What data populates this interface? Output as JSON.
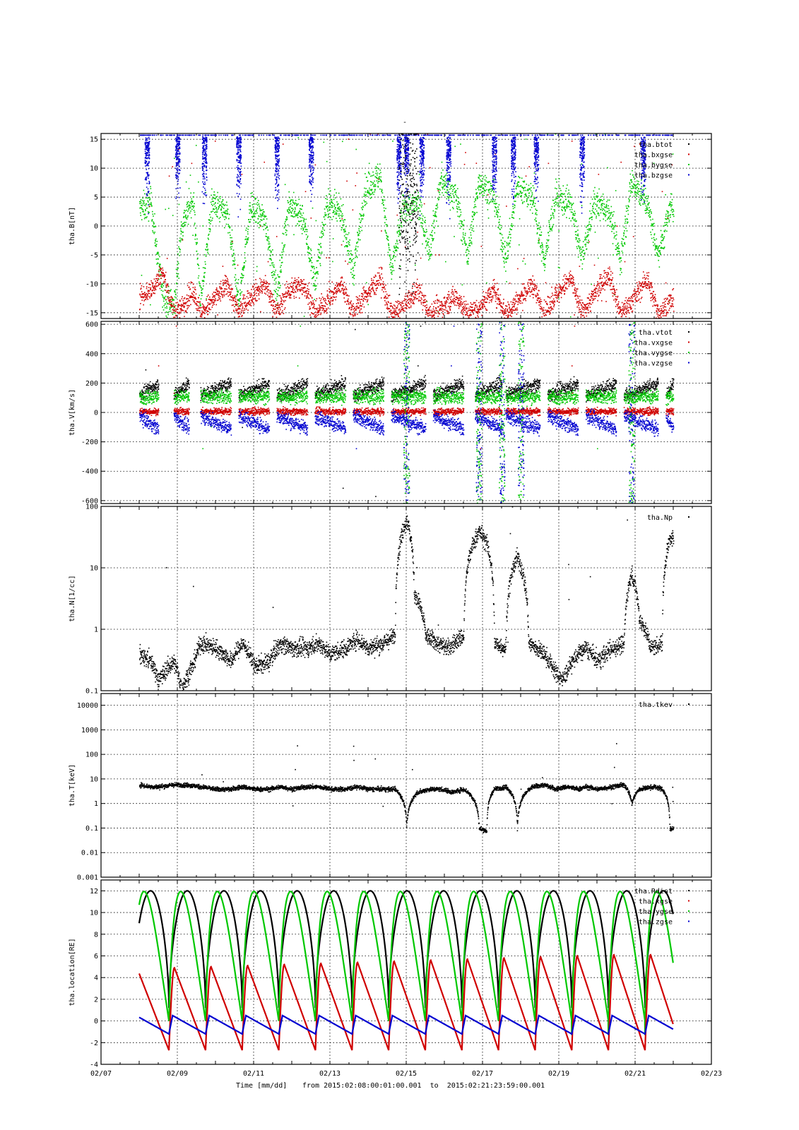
{
  "figure": {
    "top_mark": "-",
    "time_label": "Time [mm/dd]",
    "from_text": "from 2015:02:08:00:01:00.001  to  2015:02:21:23:59:00.001",
    "x_ticks": [
      "02/07",
      "02/09",
      "02/11",
      "02/13",
      "02/15",
      "02/17",
      "02/19",
      "02/21",
      "02/23"
    ],
    "x_range_days": [
      7,
      23
    ]
  },
  "colors": {
    "black": "#000000",
    "green": "#00c800",
    "red": "#d00000",
    "blue": "#0000d0"
  },
  "chart_data": [
    {
      "id": "B",
      "type": "scatter",
      "ylabel": "tha.B[nT]",
      "scale": "linear",
      "ylim": [
        -16,
        16
      ],
      "ticks": [
        -15,
        -10,
        -5,
        0,
        5,
        10,
        15
      ],
      "tick_labels": [
        "-15",
        "-10",
        "-5",
        "0",
        "5",
        "10",
        "15"
      ],
      "legend": [
        "tha.btot",
        "tha.bxgse",
        "tha.bygse",
        "tha.bzgse"
      ],
      "series_colors": [
        "black",
        "red",
        "green",
        "blue"
      ],
      "profile": [
        {
          "series": "tha.bygse",
          "x": [
            8.0,
            8.3,
            8.6,
            8.9,
            9.1,
            9.4,
            9.6,
            9.9,
            10.3,
            10.6,
            10.9,
            11.3,
            11.6,
            11.9,
            12.3,
            12.6,
            12.9,
            13.3,
            13.6,
            13.9,
            14.3,
            14.6,
            14.9,
            15.3,
            15.6,
            15.9,
            16.3,
            16.6,
            16.9,
            17.3,
            17.6,
            17.9,
            18.3,
            18.6,
            18.9,
            19.3,
            19.6,
            19.9,
            20.3,
            20.6,
            20.9,
            21.3,
            21.6,
            21.9
          ],
          "y": [
            3,
            4,
            -12,
            -14,
            0,
            5,
            -13,
            4,
            2,
            -13,
            3,
            1,
            -12,
            4,
            1,
            -10,
            4,
            2,
            -8,
            6,
            9,
            -8,
            3,
            4,
            -4,
            8,
            5,
            -5,
            8,
            5,
            -6,
            7,
            5,
            -6,
            5,
            4,
            -6,
            4,
            3,
            -6,
            8,
            4,
            -5,
            3
          ]
        },
        {
          "series": "tha.bxgse",
          "x": [
            8.0,
            8.3,
            8.6,
            8.9,
            9.1,
            9.4,
            9.6,
            9.9,
            10.3,
            10.6,
            10.9,
            11.3,
            11.6,
            11.9,
            12.3,
            12.6,
            12.9,
            13.3,
            13.6,
            13.9,
            14.3,
            14.6,
            14.9,
            15.3,
            15.6,
            15.9,
            16.3,
            16.6,
            16.9,
            17.3,
            17.6,
            17.9,
            18.3,
            18.6,
            18.9,
            19.3,
            19.6,
            19.9,
            20.3,
            20.6,
            20.9,
            21.3,
            21.6,
            21.9
          ],
          "y": [
            -12,
            -11,
            -8,
            -15,
            -14,
            -11,
            -15,
            -13,
            -10,
            -15,
            -12,
            -10,
            -15,
            -11,
            -10,
            -15,
            -13,
            -10,
            -15,
            -12,
            -9,
            -15,
            -14,
            -11,
            -15,
            -14,
            -12,
            -15,
            -14,
            -11,
            -15,
            -13,
            -10,
            -15,
            -12,
            -9,
            -15,
            -12,
            -8,
            -15,
            -13,
            -9,
            -15,
            -13
          ]
        }
      ]
    },
    {
      "id": "V",
      "type": "scatter",
      "ylabel": "tha.V[km/s]",
      "scale": "linear",
      "ylim": [
        -620,
        620
      ],
      "ticks": [
        -600,
        -400,
        -200,
        0,
        200,
        400,
        600
      ],
      "tick_labels": [
        "-600",
        "-400",
        "-200",
        "0",
        "200",
        "400",
        "600"
      ],
      "legend": [
        "tha.vtot",
        "tha.vxgse",
        "tha.vygse",
        "tha.vzgse"
      ],
      "series_colors": [
        "black",
        "red",
        "green",
        "blue"
      ],
      "segments_days": [
        [
          8.0,
          8.5
        ],
        [
          8.9,
          9.3
        ],
        [
          9.6,
          10.4
        ],
        [
          10.6,
          11.4
        ],
        [
          11.6,
          12.4
        ],
        [
          12.6,
          13.4
        ],
        [
          13.6,
          14.4
        ],
        [
          14.6,
          15.5
        ],
        [
          15.7,
          16.5
        ],
        [
          16.8,
          17.5
        ],
        [
          17.6,
          18.5
        ],
        [
          18.7,
          19.5
        ],
        [
          19.7,
          20.5
        ],
        [
          20.7,
          21.6
        ],
        [
          21.8,
          22.0
        ]
      ],
      "levels": {
        "tha.vtot": 160,
        "tha.vygse": 110,
        "tha.vxgse": 10,
        "tha.vzgse": -60
      }
    },
    {
      "id": "N",
      "type": "scatter",
      "ylabel": "tha.N[1/cc]",
      "scale": "log",
      "ylim": [
        0.1,
        100
      ],
      "ticks": [
        0.1,
        1,
        10,
        100
      ],
      "tick_labels": [
        "0.1",
        "1",
        "10",
        "100"
      ],
      "legend": [
        "tha.Np"
      ],
      "series_colors": [
        "black"
      ],
      "profile": [
        {
          "series": "tha.Np",
          "x": [
            8.0,
            8.3,
            8.5,
            8.9,
            9.1,
            9.4,
            9.6,
            10.0,
            10.4,
            10.7,
            11.0,
            11.4,
            11.7,
            12.0,
            12.4,
            12.7,
            13.0,
            13.4,
            13.7,
            14.0,
            14.4,
            14.7,
            15.0,
            15.2,
            15.5,
            15.8,
            16.1,
            16.5,
            16.9,
            17.1,
            17.3,
            17.6,
            17.9,
            18.2,
            18.6,
            18.9,
            19.1,
            19.5,
            19.7,
            20.0,
            20.4,
            20.7,
            20.9,
            21.1,
            21.4,
            21.7,
            21.9
          ],
          "y": [
            0.4,
            0.3,
            0.15,
            0.3,
            0.1,
            0.25,
            0.6,
            0.5,
            0.3,
            0.6,
            0.25,
            0.3,
            0.6,
            0.5,
            0.5,
            0.6,
            0.4,
            0.5,
            0.7,
            0.5,
            0.6,
            0.8,
            60,
            4,
            0.8,
            0.6,
            0.5,
            0.8,
            40,
            25,
            0.6,
            0.5,
            15,
            0.6,
            0.4,
            0.2,
            0.15,
            0.4,
            0.5,
            0.3,
            0.5,
            0.6,
            8,
            1.5,
            0.5,
            0.6,
            30
          ]
        }
      ]
    },
    {
      "id": "T",
      "type": "scatter",
      "ylabel": "tha.T[keV]",
      "scale": "log",
      "ylim": [
        0.001,
        30000
      ],
      "ticks": [
        0.001,
        0.01,
        0.1,
        1,
        10,
        100,
        1000,
        10000
      ],
      "tick_labels": [
        "0.001",
        "0.01",
        "0.1",
        "1",
        "10",
        "100",
        "1000",
        "10000"
      ],
      "legend": [
        "tha.tkev"
      ],
      "series_colors": [
        "black"
      ],
      "profile": [
        {
          "series": "tha.tkev",
          "x": [
            8.0,
            8.3,
            8.5,
            8.9,
            9.2,
            9.6,
            10.0,
            10.4,
            10.7,
            11.0,
            11.4,
            11.7,
            12.0,
            12.4,
            12.7,
            13.0,
            13.4,
            13.7,
            14.0,
            14.4,
            14.7,
            15.0,
            15.3,
            15.6,
            15.9,
            16.2,
            16.5,
            16.9,
            17.1,
            17.3,
            17.6,
            17.9,
            18.3,
            18.6,
            18.9,
            19.2,
            19.5,
            19.7,
            20.0,
            20.4,
            20.7,
            20.9,
            21.1,
            21.5,
            21.7,
            21.9
          ],
          "y": [
            6,
            5,
            5,
            6,
            6,
            5,
            4,
            4,
            5,
            4,
            4,
            5,
            4,
            5,
            5,
            4,
            4,
            5,
            4,
            4,
            4,
            0.1,
            3,
            4,
            4,
            3,
            4,
            0.1,
            0.08,
            4,
            5,
            0.1,
            5,
            6,
            4,
            5,
            4,
            5,
            4,
            5,
            6,
            1,
            4,
            5,
            4,
            0.1
          ]
        }
      ]
    },
    {
      "id": "location",
      "type": "line",
      "ylabel": "tha.location[RE]",
      "scale": "linear",
      "ylim": [
        -4,
        13
      ],
      "ticks": [
        -4,
        -2,
        0,
        2,
        4,
        6,
        8,
        10,
        12
      ],
      "tick_labels": [
        "-4",
        "-2",
        "0",
        "2",
        "4",
        "6",
        "8",
        "10",
        "12"
      ],
      "legend": [
        "tha.Rdist",
        "tha.xgse",
        "tha.ygse",
        "tha.zgse"
      ],
      "series_colors": [
        "black",
        "red",
        "green",
        "blue"
      ],
      "orbit": {
        "start_day": 8.0,
        "end_day": 22.0,
        "perigee_days": [
          8.78,
          9.74,
          10.7,
          11.66,
          12.62,
          13.58,
          14.54,
          15.5,
          16.46,
          17.42,
          18.38,
          19.34,
          20.3,
          21.26
        ],
        "apogee_re": 12.0,
        "perigee_re": 1.2,
        "x_peak_re": [
          4.7,
          4.9,
          5.0,
          5.1,
          5.2,
          5.3,
          5.4,
          5.5,
          5.6,
          5.7,
          5.8,
          5.9,
          6.0,
          6.1
        ],
        "x_min_re": -2.7,
        "z_range_re": [
          -1.2,
          0.5
        ]
      }
    }
  ]
}
